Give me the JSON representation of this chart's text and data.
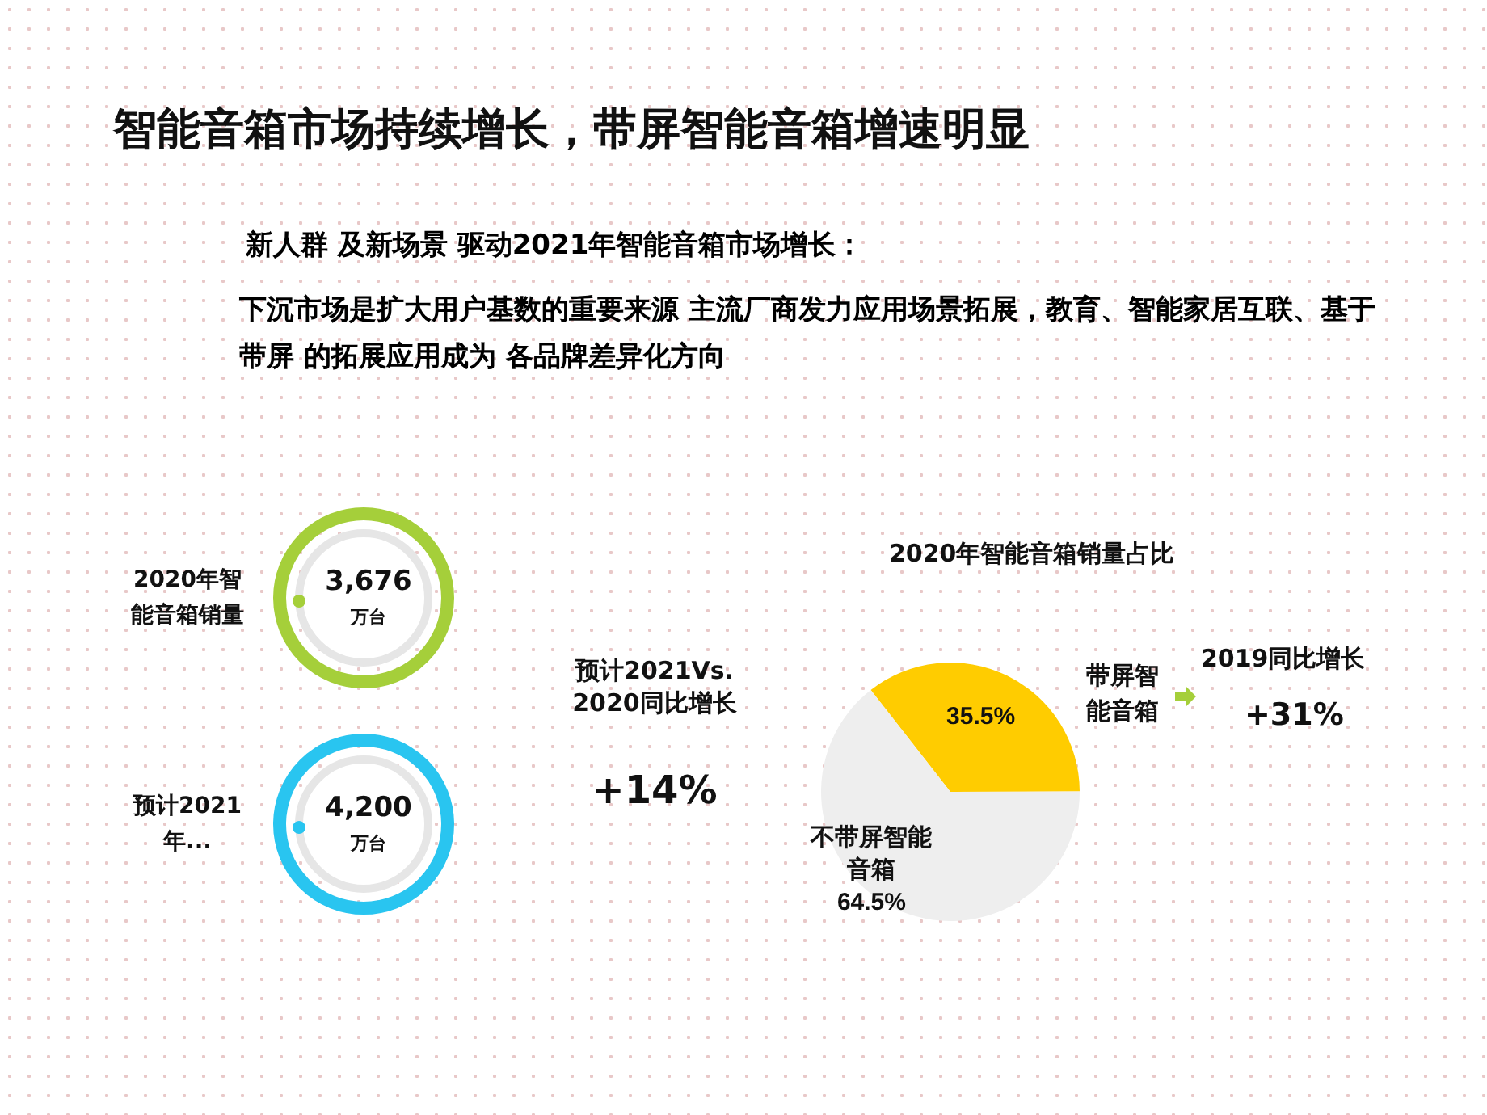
{
  "chart_data": [
    {
      "type": "other",
      "title": "智能音箱市场持续增长，带屏智能音箱增速明显",
      "subtitle": "新人群 及新场景 驱动2021年智能音箱市场增长：",
      "categories": [
        "2020年智能音箱销量",
        "预计2021年..."
      ],
      "value_labels": [
        "3,676",
        "4,200"
      ],
      "colors": [
        "#a5cf3a",
        "#29c5f0"
      ],
      "annotations": [
        "下沉市场是扩大用户基数的重要来源 主流厂商发力应用场景拓展，教育、智能家居互联、基于带屏 的拓展应用成为 各品牌差异化方向",
        "万台",
        "预计2021Vs.2020同比增长",
        "+14%"
      ]
    },
    {
      "type": "pie",
      "title": "2020年智能音箱销量占比",
      "categories": [
        "带屏智能音箱",
        "不带屏智能音箱"
      ],
      "values": [
        35.5,
        64.5
      ],
      "colors": [
        "#ffcc00",
        "#eeeeee"
      ],
      "value_labels": [
        "35.5%",
        "64.5%"
      ],
      "annotations": [
        "2019同比增长",
        "+31%"
      ]
    }
  ]
}
